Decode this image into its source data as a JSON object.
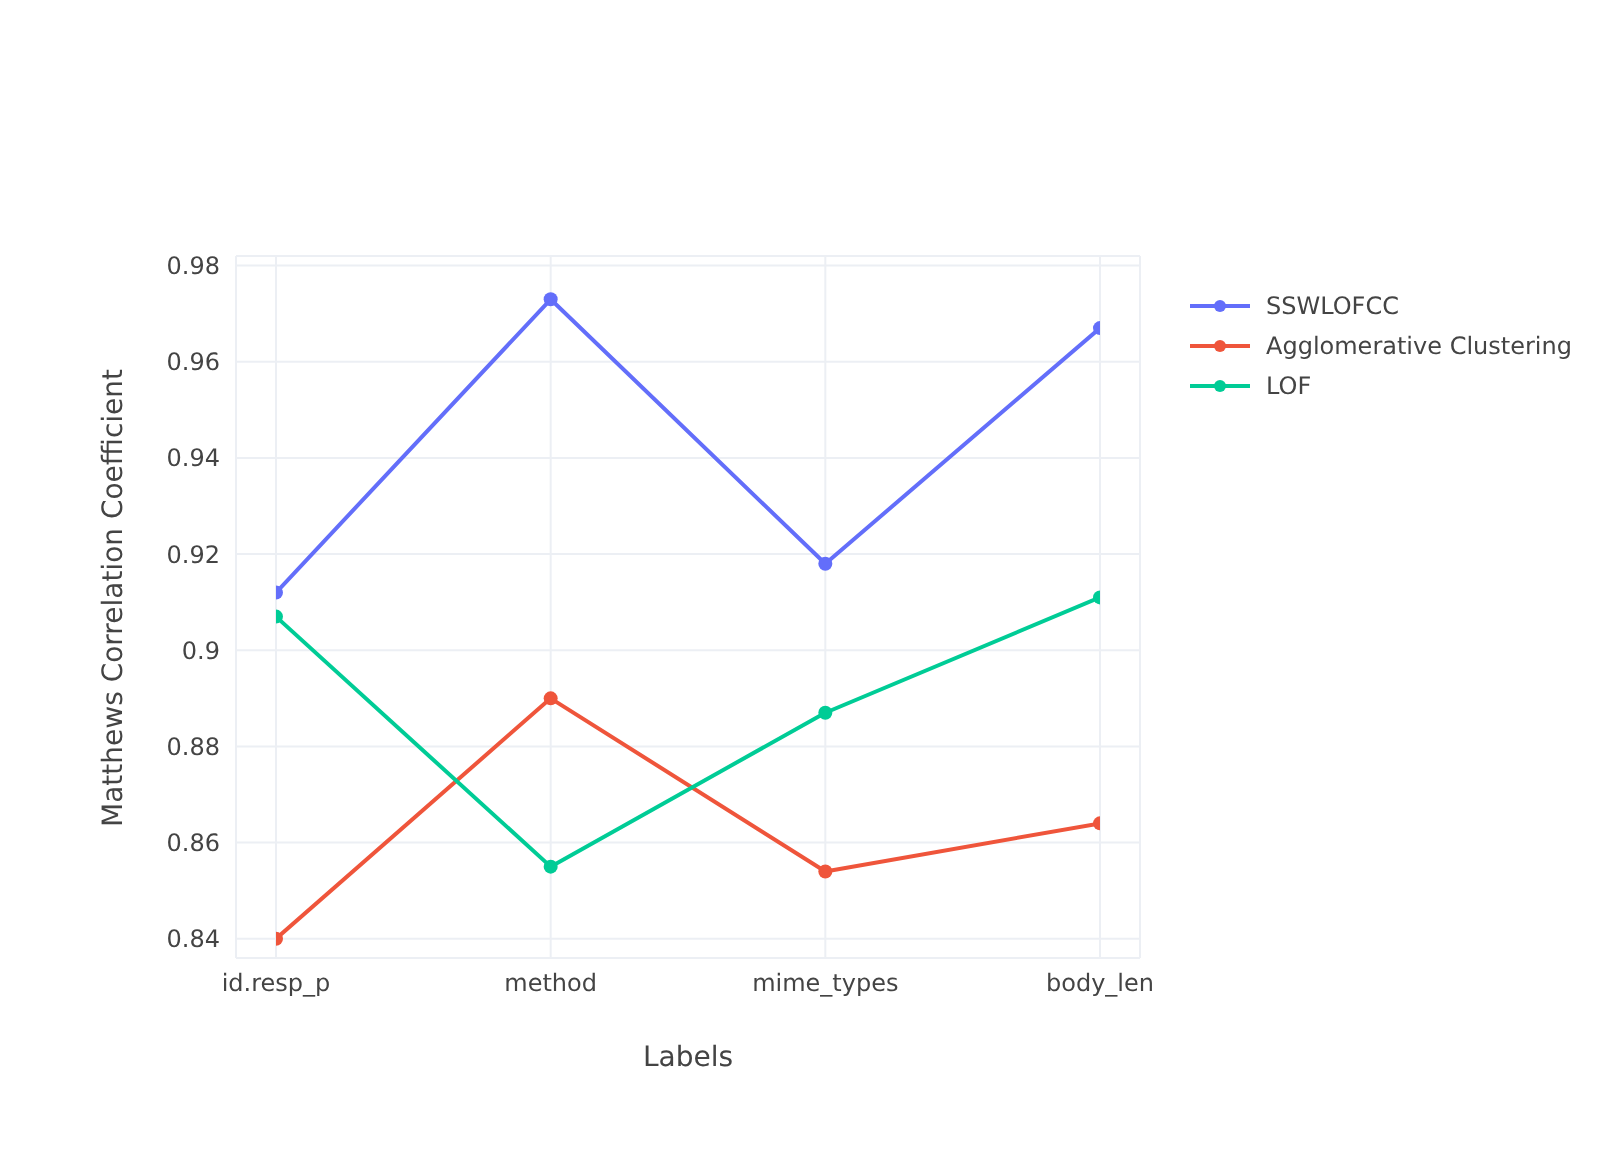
{
  "chart_data": {
    "type": "line",
    "xlabel": "Labels",
    "ylabel": "Matthews Correlation Coefficient",
    "categories": [
      "id.resp_p",
      "method",
      "mime_types",
      "body_len"
    ],
    "series": [
      {
        "name": "SSWLOFCC",
        "color": "#636efa",
        "values": [
          0.912,
          0.973,
          0.918,
          0.967
        ]
      },
      {
        "name": "Agglomerative Clustering",
        "color": "#ef553b",
        "values": [
          0.84,
          0.89,
          0.854,
          0.864
        ]
      },
      {
        "name": "LOF",
        "color": "#00cc96",
        "values": [
          0.907,
          0.855,
          0.887,
          0.911
        ]
      }
    ],
    "ylim": [
      0.836,
      0.982
    ],
    "yticks": [
      0.84,
      0.86,
      0.88,
      0.9,
      0.92,
      0.94,
      0.96,
      0.98
    ],
    "grid": true,
    "legend": "top right",
    "marker": "circle",
    "line_style": "solid"
  }
}
